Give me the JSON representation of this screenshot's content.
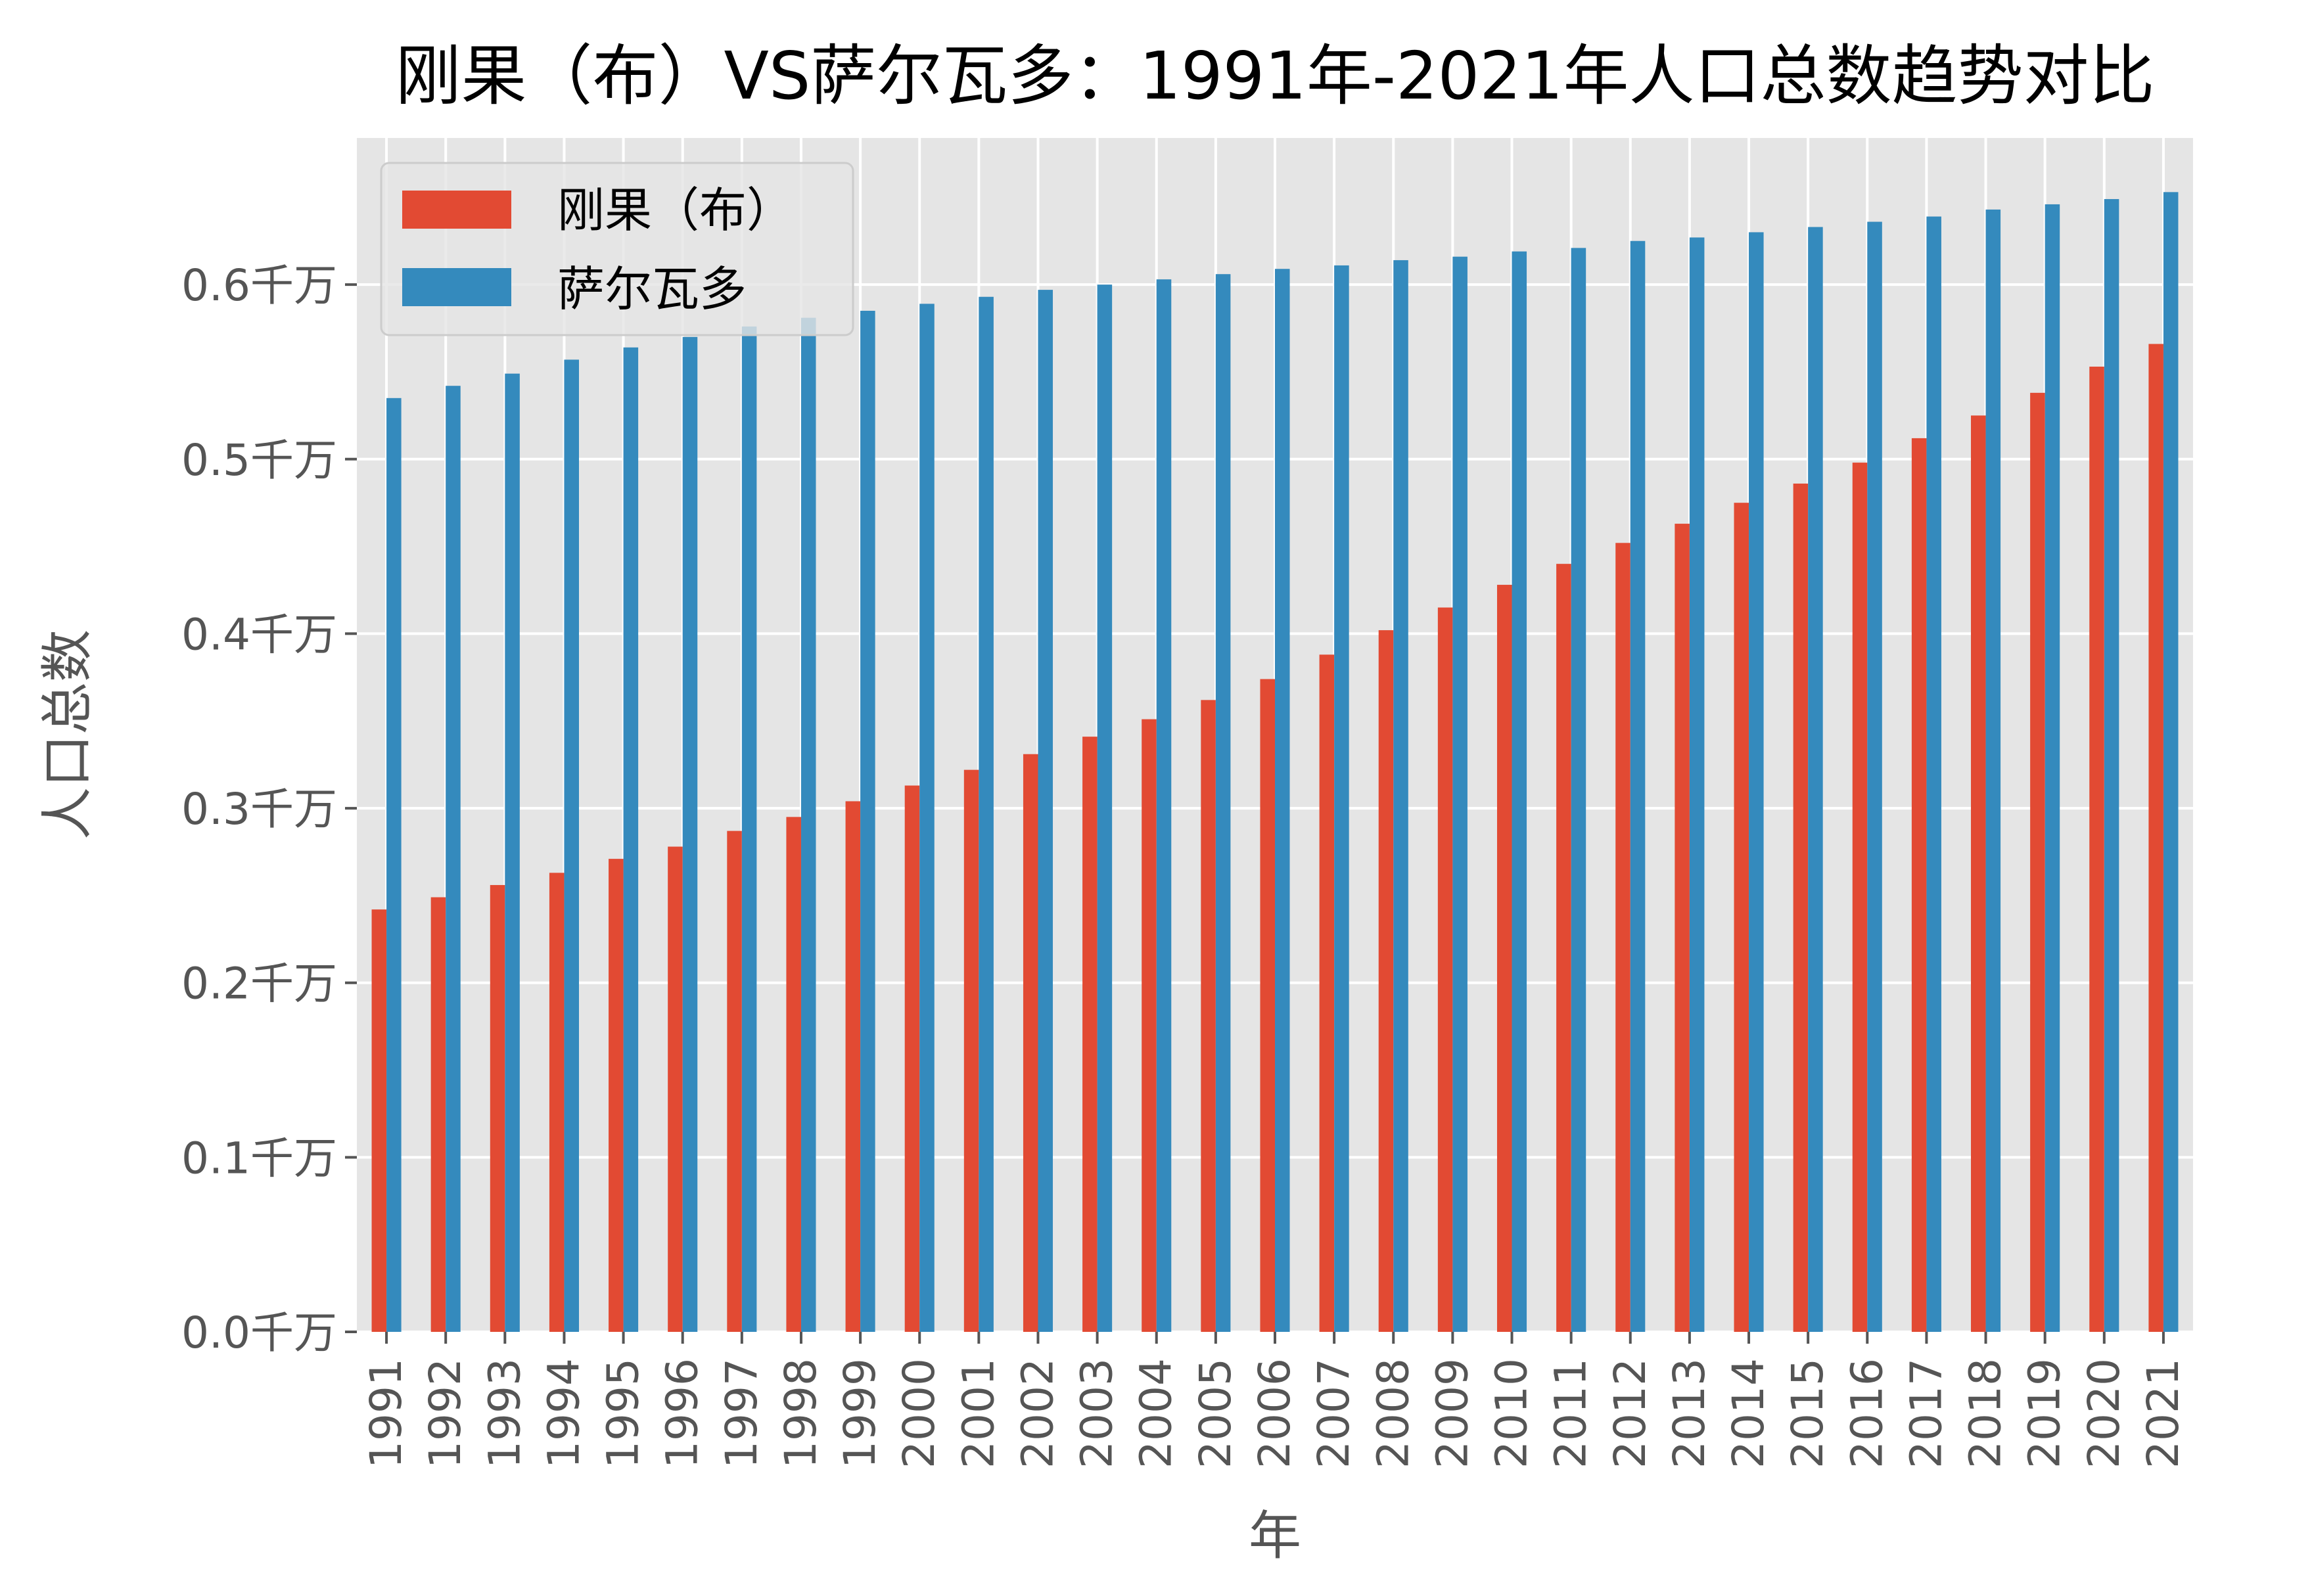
{
  "chart_data": {
    "type": "bar",
    "title": "刚果（布）VS萨尔瓦多：1991年-2021年人口总数趋势对比",
    "xlabel": "年",
    "ylabel": "人口总数",
    "ylim": [
      0,
      0.684
    ],
    "yticks": [
      0.0,
      0.1,
      0.2,
      0.3,
      0.4,
      0.5,
      0.6
    ],
    "ytick_labels": [
      "0.0千万",
      "0.1千万",
      "0.2千万",
      "0.3千万",
      "0.4千万",
      "0.5千万",
      "0.6千万"
    ],
    "grid": true,
    "legend_position": "top-left",
    "categories": [
      "1991",
      "1992",
      "1993",
      "1994",
      "1995",
      "1996",
      "1997",
      "1998",
      "1999",
      "2000",
      "2001",
      "2002",
      "2003",
      "2004",
      "2005",
      "2006",
      "2007",
      "2008",
      "2009",
      "2010",
      "2011",
      "2012",
      "2013",
      "2014",
      "2015",
      "2016",
      "2017",
      "2018",
      "2019",
      "2020",
      "2021"
    ],
    "series": [
      {
        "name": "刚果（布）",
        "color": "#E24A33",
        "values": [
          0.242,
          0.249,
          0.256,
          0.263,
          0.271,
          0.278,
          0.287,
          0.295,
          0.304,
          0.313,
          0.322,
          0.331,
          0.341,
          0.351,
          0.362,
          0.374,
          0.388,
          0.402,
          0.415,
          0.428,
          0.44,
          0.452,
          0.463,
          0.475,
          0.486,
          0.498,
          0.512,
          0.525,
          0.538,
          0.553,
          0.566
        ]
      },
      {
        "name": "萨尔瓦多",
        "color": "#348ABD",
        "values": [
          0.535,
          0.542,
          0.549,
          0.557,
          0.564,
          0.57,
          0.576,
          0.581,
          0.585,
          0.589,
          0.593,
          0.597,
          0.6,
          0.603,
          0.606,
          0.609,
          0.611,
          0.614,
          0.616,
          0.619,
          0.621,
          0.625,
          0.627,
          0.63,
          0.633,
          0.636,
          0.639,
          0.643,
          0.646,
          0.649,
          0.653
        ]
      }
    ],
    "background_color": "#E5E5E5"
  }
}
